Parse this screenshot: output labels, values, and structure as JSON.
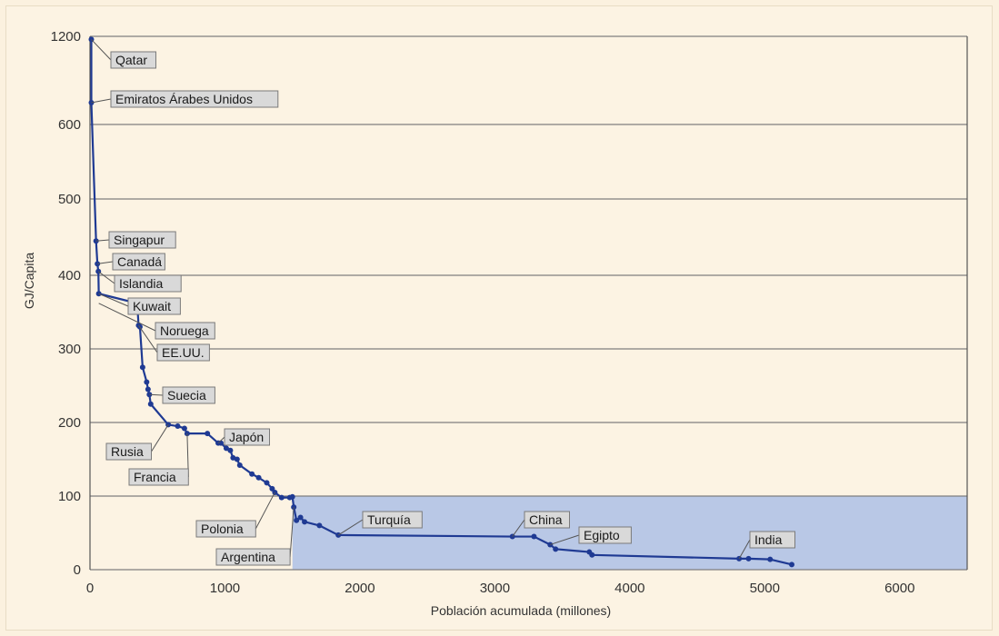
{
  "chart_data": {
    "type": "line",
    "title": "",
    "xlabel": "Población acumulada (millones)",
    "ylabel": "GJ/Capita",
    "xlim": [
      0,
      6500
    ],
    "x_ticks": [
      "0",
      "1000",
      "2000",
      "3000",
      "4000",
      "5000",
      "6000"
    ],
    "y_ticks": [
      "0",
      "100",
      "200",
      "300",
      "400",
      "500",
      "600",
      "1200"
    ],
    "y_scale_note": "axis break between 600 and 1200",
    "grid": true,
    "highlight_band": {
      "y_from": 0,
      "y_to": 100,
      "x_from": 1500,
      "x_to": 6500,
      "color": "#b9c8e6"
    },
    "colors": {
      "line": "#1f3a93",
      "grid": "#7f7f7f",
      "background": "#fcf3e3"
    },
    "series": [
      {
        "x": [
          10,
          10,
          45,
          55,
          62,
          65,
          350,
          360,
          370,
          390,
          420,
          430,
          440,
          450,
          580,
          650,
          700,
          720,
          870,
          950,
          970,
          1010,
          1040,
          1060,
          1090,
          1110,
          1200,
          1250,
          1310,
          1350,
          1370,
          1420,
          1480,
          1500,
          1510,
          1530,
          1560,
          1590,
          1700,
          1840,
          3130,
          3290,
          3410,
          3450,
          3700,
          3720,
          4810,
          4880,
          5040,
          5200
        ],
        "y": [
          1170,
          660,
          445,
          415,
          405,
          375,
          362,
          332,
          330,
          275,
          255,
          245,
          238,
          225,
          197,
          195,
          192,
          185,
          185,
          172,
          172,
          165,
          162,
          152,
          150,
          142,
          130,
          125,
          118,
          110,
          105,
          98,
          98,
          99,
          85,
          67,
          71,
          65,
          60,
          47,
          45,
          45,
          34,
          28,
          24,
          20,
          15,
          15,
          14,
          7
        ]
      }
    ],
    "annotations": [
      {
        "label": "Qatar",
        "x": 10,
        "y": 1170
      },
      {
        "label": "Emiratos Árabes Unidos",
        "x": 10,
        "y": 660
      },
      {
        "label": "Singapur",
        "x": 45,
        "y": 445
      },
      {
        "label": "Canadá",
        "x": 55,
        "y": 415
      },
      {
        "label": "Islandia",
        "x": 62,
        "y": 405
      },
      {
        "label": "Kuwait",
        "x": 65,
        "y": 375
      },
      {
        "label": "Noruega",
        "x": 65,
        "y": 362
      },
      {
        "label": "EE.UU.",
        "x": 360,
        "y": 332
      },
      {
        "label": "Suecia",
        "x": 440,
        "y": 238
      },
      {
        "label": "Rusia",
        "x": 580,
        "y": 197
      },
      {
        "label": "Japón",
        "x": 950,
        "y": 172
      },
      {
        "label": "Francia",
        "x": 720,
        "y": 185
      },
      {
        "label": "Polonia",
        "x": 1370,
        "y": 105
      },
      {
        "label": "Argentina",
        "x": 1510,
        "y": 85
      },
      {
        "label": "Turquía",
        "x": 1840,
        "y": 47
      },
      {
        "label": "China",
        "x": 3130,
        "y": 45
      },
      {
        "label": "Egipto",
        "x": 3410,
        "y": 34
      },
      {
        "label": "India",
        "x": 4810,
        "y": 15
      }
    ]
  }
}
